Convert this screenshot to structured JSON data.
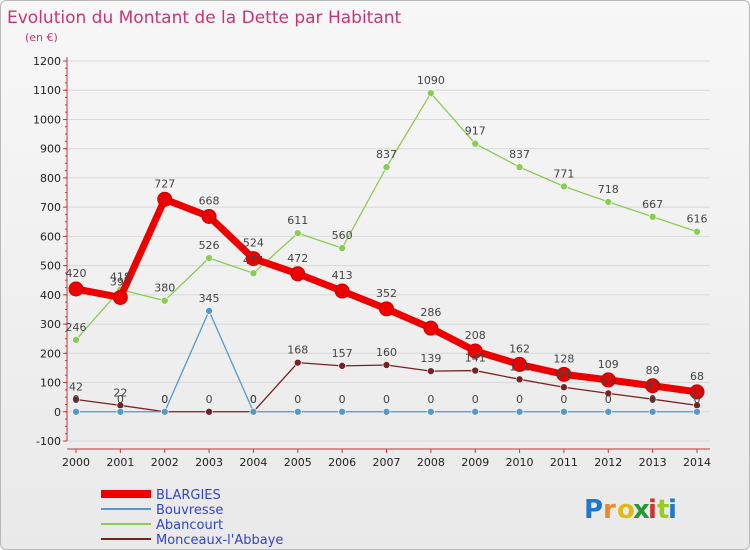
{
  "chart_data": {
    "type": "line",
    "title": "Evolution du Montant de la Dette par Habitant",
    "subtitle": "(en €)",
    "xlabel": "",
    "ylabel": "",
    "x": [
      "2000",
      "2001",
      "2002",
      "2003",
      "2004",
      "2005",
      "2006",
      "2007",
      "2008",
      "2009",
      "2010",
      "2011",
      "2012",
      "2013",
      "2014"
    ],
    "ylim": [
      -100,
      1200
    ],
    "yticks": [
      "-100",
      "0",
      "100",
      "200",
      "300",
      "400",
      "500",
      "600",
      "700",
      "800",
      "900",
      "1000",
      "1100",
      "1200"
    ],
    "grid": "horizontal",
    "legend_position": "bottom-left",
    "series": [
      {
        "name": "BLARGIES",
        "color": "#ee0000",
        "values": [
          420,
          391,
          727,
          668,
          524,
          472,
          413,
          352,
          286,
          208,
          162,
          128,
          109,
          89,
          68
        ],
        "labels": [
          "420",
          "391",
          "727",
          "668",
          "524",
          "472",
          "413",
          "352",
          "286",
          "208",
          "162",
          "128",
          "109",
          "89",
          "68"
        ]
      },
      {
        "name": "Bouvresse",
        "color": "#5599cc",
        "values": [
          0,
          0,
          0,
          345,
          0,
          0,
          0,
          0,
          0,
          0,
          0,
          0,
          0,
          0,
          0
        ],
        "labels": [
          "0",
          "0",
          "0",
          "345",
          "0",
          "0",
          "0",
          "0",
          "0",
          "0",
          "0",
          "0",
          "0",
          "0",
          "0"
        ]
      },
      {
        "name": "Abancourt",
        "color": "#88cc55",
        "values": [
          246,
          418,
          380,
          526,
          474,
          611,
          560,
          837,
          1090,
          917,
          837,
          771,
          718,
          667,
          616
        ],
        "labels": [
          "246",
          "418",
          "380",
          "526",
          "474",
          "611",
          "560",
          "837",
          "1090",
          "917",
          "837",
          "771",
          "718",
          "667",
          "616"
        ]
      },
      {
        "name": "Monceaux-l'Abbaye",
        "color": "#772222",
        "values": [
          42,
          22,
          0,
          0,
          0,
          168,
          157,
          160,
          139,
          141,
          111,
          84,
          63,
          43,
          22
        ],
        "labels": [
          "42",
          "22",
          "0",
          "0",
          "0",
          "168",
          "157",
          "160",
          "139",
          "141",
          "111",
          "84",
          "63",
          "43",
          "22"
        ]
      }
    ]
  },
  "brand": {
    "letters": [
      "P",
      "r",
      "o",
      "x",
      "i",
      "t",
      "i"
    ],
    "colors": [
      "#2277cc",
      "#ee8822",
      "#ddbb11",
      "#229933",
      "#cc3333",
      "#99cc22",
      "#2277cc"
    ]
  }
}
